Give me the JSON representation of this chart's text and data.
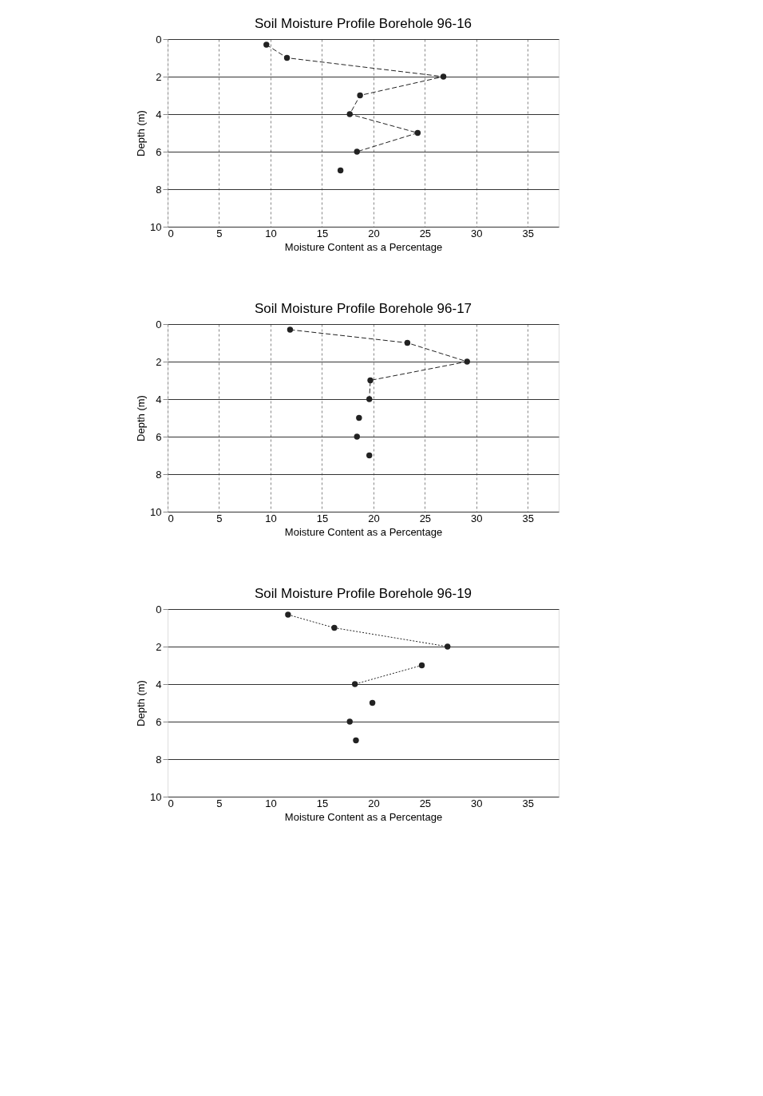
{
  "chart_data": [
    {
      "type": "scatter",
      "title": "Soil Moisture Profile Borehole 96-16",
      "xlabel": "Moisture Content as a Percentage",
      "ylabel": "Depth (m)",
      "xlim": [
        0,
        38
      ],
      "xticks": [
        0,
        5,
        10,
        15,
        20,
        25,
        30,
        35
      ],
      "ylim": [
        10,
        0
      ],
      "yticks": [
        0,
        2,
        4,
        6,
        8,
        10
      ],
      "grid": true,
      "marker": "circle",
      "line_style": "dashed",
      "series": [
        {
          "type": "line",
          "color": "#222222",
          "x": [
            9.6,
            11.6,
            26.8,
            18.7,
            17.7,
            24.3,
            18.4
          ],
          "values": [
            0.3,
            1,
            2,
            3,
            4,
            5,
            6
          ]
        },
        {
          "color": "#222222",
          "x": [
            16.8
          ],
          "values": [
            7
          ]
        }
      ]
    },
    {
      "type": "scatter",
      "title": "Soil Moisture Profile Borehole 96-17",
      "xlabel": "Moisture Content as a Percentage",
      "ylabel": "Depth (m)",
      "xlim": [
        0,
        38
      ],
      "xticks": [
        0,
        5,
        10,
        15,
        20,
        25,
        30,
        35
      ],
      "ylim": [
        10,
        0
      ],
      "yticks": [
        0,
        2,
        4,
        6,
        8,
        10
      ],
      "grid": true,
      "marker": "circle",
      "line_style": "dashed",
      "series": [
        {
          "type": "line",
          "color": "#222222",
          "x": [
            11.9,
            23.3,
            29.1,
            19.7,
            19.6
          ],
          "values": [
            0.3,
            1,
            2,
            3,
            4
          ]
        },
        {
          "color": "#222222",
          "x": [
            18.6,
            18.4,
            19.6
          ],
          "values": [
            5,
            6,
            7
          ]
        }
      ]
    },
    {
      "type": "scatter",
      "title": "Soil Moisture Profile Borehole 96-19",
      "xlabel": "Moisture Content as a Percentage",
      "ylabel": "Depth (m)",
      "xlim": [
        0,
        38
      ],
      "xticks": [
        0,
        5,
        10,
        15,
        20,
        25,
        30,
        35
      ],
      "ylim": [
        10,
        0
      ],
      "yticks": [
        0,
        2,
        4,
        6,
        8,
        10
      ],
      "grid": "y",
      "marker": "circle",
      "line_style": "dotted",
      "series": [
        {
          "type": "line",
          "color": "#222222",
          "x": [
            11.7,
            16.2,
            27.2
          ],
          "values": [
            0.3,
            1,
            2
          ]
        },
        {
          "type": "line",
          "color": "#222222",
          "x": [
            24.7,
            18.2
          ],
          "values": [
            3,
            4
          ]
        },
        {
          "color": "#222222",
          "x": [
            19.9,
            17.7,
            18.3
          ],
          "values": [
            5,
            6,
            7
          ]
        }
      ]
    }
  ]
}
